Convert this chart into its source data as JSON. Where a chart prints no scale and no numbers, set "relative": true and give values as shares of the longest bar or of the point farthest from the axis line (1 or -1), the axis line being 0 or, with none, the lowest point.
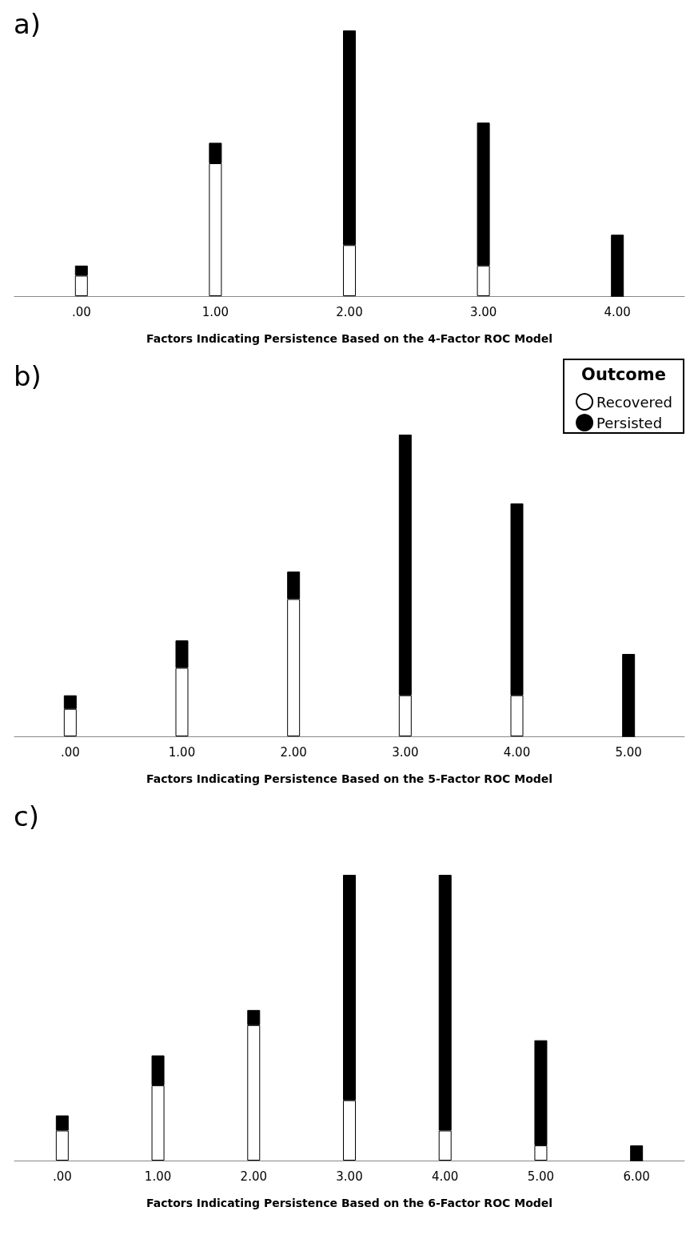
{
  "chart_data": [
    {
      "type": "bar",
      "title": "a)",
      "xlabel": "Factors Indicating Persistence Based on the 4-Factor ROC Model",
      "categories": [
        ".00",
        "1.00",
        "2.00",
        "3.00",
        "4.00"
      ],
      "stacked": true,
      "relative": true,
      "legend": false,
      "grid": false,
      "series": [
        {
          "color": "#ffffff",
          "values": [
            0.077,
            0.5,
            0.192,
            0.115,
            0
          ]
        },
        {
          "color": "#000000",
          "values": [
            0.038,
            0.077,
            0.808,
            0.538,
            0.231
          ]
        }
      ]
    },
    {
      "type": "bar",
      "title": "b)",
      "xlabel": "Factors Indicating Persistence Based on the 5-Factor ROC Model",
      "categories": [
        ".00",
        "1.00",
        "2.00",
        "3.00",
        "4.00",
        "5.00"
      ],
      "stacked": true,
      "relative": true,
      "legend": "top right",
      "legend_title": "Outcome",
      "grid": false,
      "series": [
        {
          "name": "Recovered",
          "color": "#ffffff",
          "values": [
            0.091,
            0.227,
            0.455,
            0.136,
            0.136,
            0
          ]
        },
        {
          "name": "Persisted",
          "color": "#000000",
          "values": [
            0.045,
            0.091,
            0.091,
            0.864,
            0.636,
            0.273
          ]
        }
      ]
    },
    {
      "type": "bar",
      "title": "c)",
      "xlabel": "Factors Indicating Persistence Based on the 6-Factor ROC Model",
      "categories": [
        ".00",
        "1.00",
        "2.00",
        "3.00",
        "4.00",
        "5.00",
        "6.00"
      ],
      "stacked": true,
      "relative": true,
      "legend": false,
      "grid": false,
      "series": [
        {
          "color": "#ffffff",
          "values": [
            0.105,
            0.263,
            0.474,
            0.211,
            0.105,
            0.053,
            0
          ]
        },
        {
          "color": "#000000",
          "values": [
            0.053,
            0.105,
            0.053,
            0.789,
            0.895,
            0.368,
            0.053
          ]
        }
      ]
    }
  ]
}
